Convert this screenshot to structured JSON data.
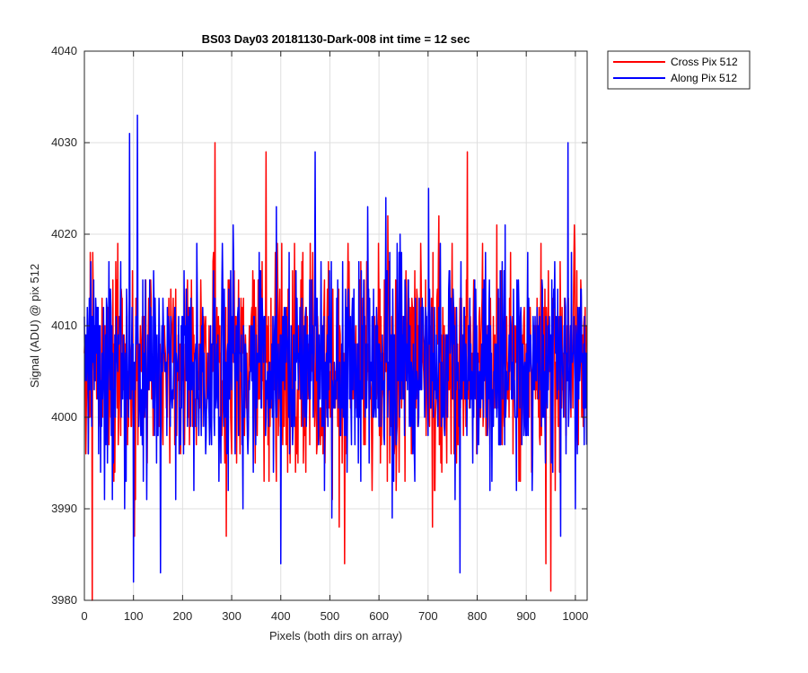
{
  "chart_data": {
    "type": "line",
    "title": "BS03 Day03 20181130-Dark-008 int time = 12 sec",
    "xlabel": "Pixels (both dirs on array)",
    "ylabel": "Signal (ADU) @ pix 512",
    "xlim": [
      0,
      1024
    ],
    "ylim": [
      3980,
      4040
    ],
    "xticks": [
      0,
      100,
      200,
      300,
      400,
      500,
      600,
      700,
      800,
      900,
      1000
    ],
    "yticks": [
      3980,
      3990,
      4000,
      4010,
      4020,
      4030,
      4040
    ],
    "grid": true,
    "legend_position": "outside-top-right",
    "noise_model": {
      "n_points": 1024,
      "mean": 4005.5,
      "std": 6,
      "min": 3980,
      "max": 4033
    },
    "series": [
      {
        "name": "Cross Pix 512",
        "color": "#ff0000",
        "seed": 17,
        "peaks": [
          [
            16,
            3980
          ],
          [
            266,
            4030
          ],
          [
            370,
            4029
          ],
          [
            780,
            4029
          ],
          [
            950,
            3981
          ],
          [
            940,
            3984
          ],
          [
            530,
            3984
          ],
          [
            102,
            3987
          ]
        ]
      },
      {
        "name": "Along Pix 512",
        "color": "#0000ff",
        "seed": 91,
        "peaks": [
          [
            92,
            4031
          ],
          [
            108,
            4033
          ],
          [
            100,
            3982
          ],
          [
            155,
            3983
          ],
          [
            470,
            4029
          ],
          [
            765,
            3983
          ],
          [
            985,
            4030
          ],
          [
            400,
            3984
          ]
        ]
      }
    ]
  }
}
